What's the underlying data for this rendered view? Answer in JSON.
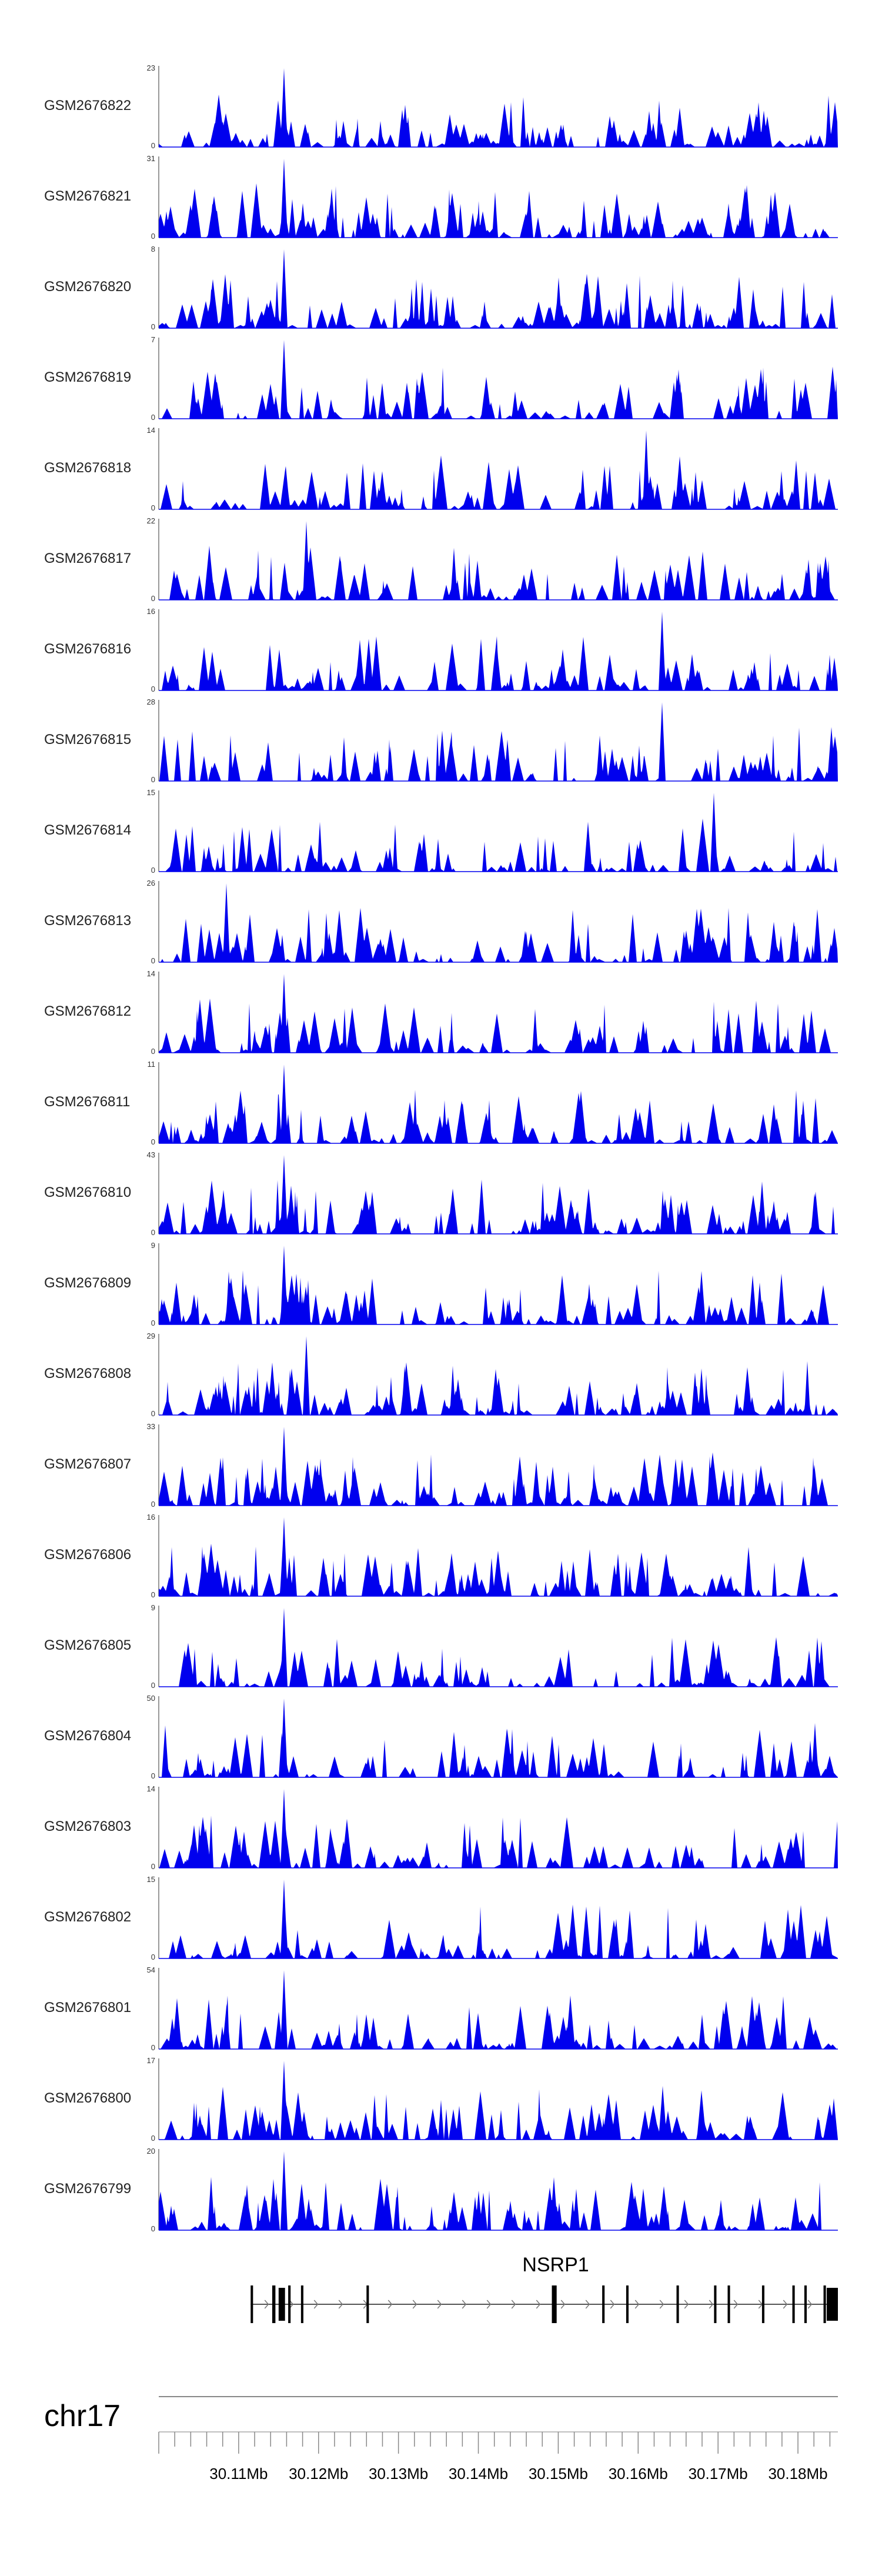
{
  "chart_data": {
    "type": "area",
    "genome": "chr17",
    "xlim": [
      30.1,
      30.185
    ],
    "tick_labels": [
      "30.11Mb",
      "30.12Mb",
      "30.13Mb",
      "30.14Mb",
      "30.15Mb",
      "30.16Mb",
      "30.17Mb",
      "30.18Mb"
    ],
    "tick_values": [
      30.11,
      30.12,
      30.13,
      30.14,
      30.15,
      30.16,
      30.17,
      30.18
    ],
    "track_color": "#0000ee",
    "tracks": [
      {
        "name": "GSM2676822",
        "ymax": 23,
        "peak": 30.1157
      },
      {
        "name": "GSM2676821",
        "ymax": 31,
        "peak": 30.1157
      },
      {
        "name": "GSM2676820",
        "ymax": 8,
        "peak": 30.1157
      },
      {
        "name": "GSM2676819",
        "ymax": 7,
        "peak": 30.1157
      },
      {
        "name": "GSM2676818",
        "ymax": 14,
        "peak": 30.161
      },
      {
        "name": "GSM2676817",
        "ymax": 22,
        "peak": 30.1185
      },
      {
        "name": "GSM2676816",
        "ymax": 16,
        "peak": 30.163
      },
      {
        "name": "GSM2676815",
        "ymax": 28,
        "peak": 30.163
      },
      {
        "name": "GSM2676814",
        "ymax": 15,
        "peak": 30.1695
      },
      {
        "name": "GSM2676813",
        "ymax": 26,
        "peak": 30.1085
      },
      {
        "name": "GSM2676812",
        "ymax": 14,
        "peak": 30.1157
      },
      {
        "name": "GSM2676811",
        "ymax": 11,
        "peak": 30.1157
      },
      {
        "name": "GSM2676810",
        "ymax": 43,
        "peak": 30.1157
      },
      {
        "name": "GSM2676809",
        "ymax": 9,
        "peak": 30.1157
      },
      {
        "name": "GSM2676808",
        "ymax": 29,
        "peak": 30.1185
      },
      {
        "name": "GSM2676807",
        "ymax": 33,
        "peak": 30.1157
      },
      {
        "name": "GSM2676806",
        "ymax": 16,
        "peak": 30.1157
      },
      {
        "name": "GSM2676805",
        "ymax": 9,
        "peak": 30.1157
      },
      {
        "name": "GSM2676804",
        "ymax": 50,
        "peak": 30.1157
      },
      {
        "name": "GSM2676803",
        "ymax": 14,
        "peak": 30.1157
      },
      {
        "name": "GSM2676802",
        "ymax": 15,
        "peak": 30.1157
      },
      {
        "name": "GSM2676801",
        "ymax": 54,
        "peak": 30.1157
      },
      {
        "name": "GSM2676800",
        "ymax": 17,
        "peak": 30.1157
      },
      {
        "name": "GSM2676799",
        "ymax": 20,
        "peak": 30.1157
      }
    ],
    "gene": {
      "name": "NSRP1",
      "start": 30.1115,
      "end": 30.185,
      "exons": [
        [
          30.1115,
          30.1118
        ],
        [
          30.1142,
          30.1146
        ],
        [
          30.115,
          30.1158
        ],
        [
          30.1162,
          30.1165
        ],
        [
          30.1178,
          30.1181
        ],
        [
          30.126,
          30.1263
        ],
        [
          30.1492,
          30.1498
        ],
        [
          30.1555,
          30.1558
        ],
        [
          30.1585,
          30.1588
        ],
        [
          30.1648,
          30.1651
        ],
        [
          30.1695,
          30.1698
        ],
        [
          30.1712,
          30.1715
        ],
        [
          30.1755,
          30.1758
        ],
        [
          30.1793,
          30.1796
        ],
        [
          30.1808,
          30.1811
        ],
        [
          30.1832,
          30.1835
        ],
        [
          30.1836,
          30.185
        ]
      ]
    }
  }
}
